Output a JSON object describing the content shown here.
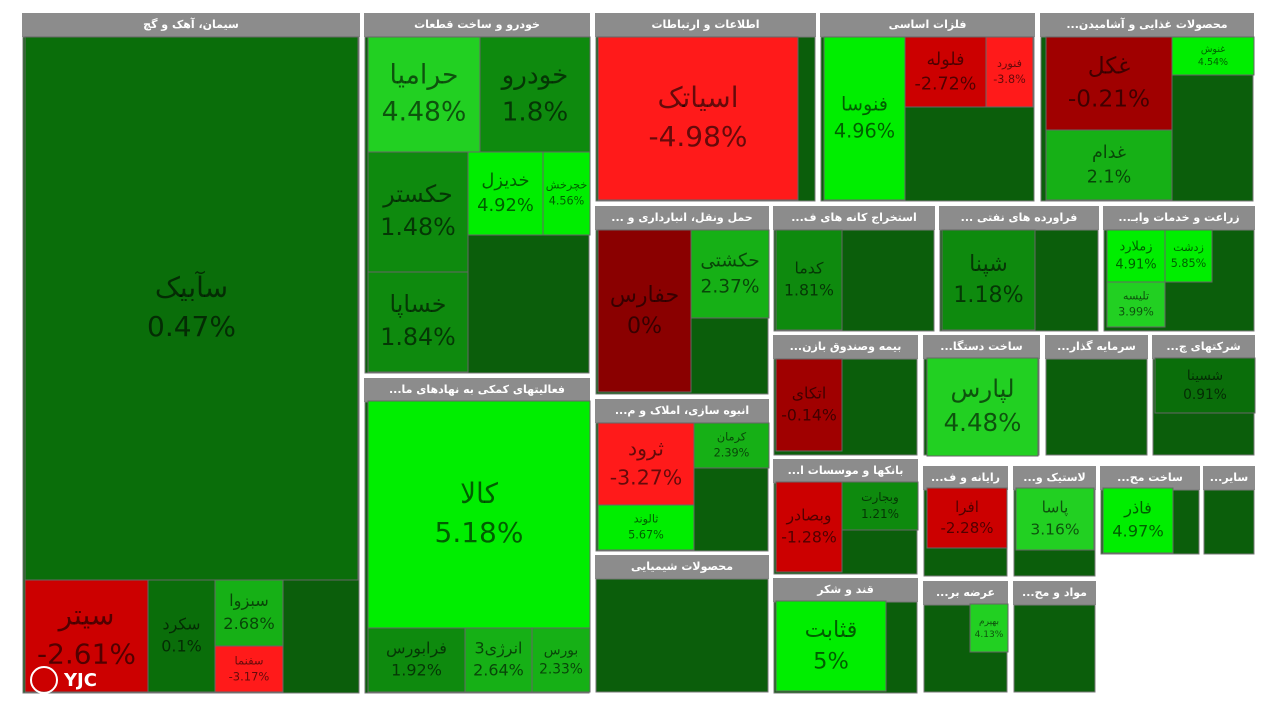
{
  "watermark": "YJC",
  "sectors": [
    {
      "title": "سیمان، آهک و گچ",
      "tiles": [
        {
          "name": "سآبیک",
          "change": "0.47%"
        },
        {
          "name": "سیتر",
          "change": "-2.61%"
        },
        {
          "name": "سکرد",
          "change": "0.1%"
        },
        {
          "name": "سبزوا",
          "change": "2.68%"
        },
        {
          "name": "سفنما",
          "change": "-3.17%"
        }
      ]
    },
    {
      "title": "خودرو و ساخت قطعات",
      "tiles": [
        {
          "name": "حرامیا",
          "change": "4.48%"
        },
        {
          "name": "خودرو",
          "change": "1.8%"
        },
        {
          "name": "حکستر",
          "change": "1.48%"
        },
        {
          "name": "خساپا",
          "change": "1.84%"
        },
        {
          "name": "خدیزل",
          "change": "4.92%"
        },
        {
          "name": "خچرخش",
          "change": "4.56%"
        }
      ]
    },
    {
      "title": "...فعالیتهای کمکی به نهادهای ما",
      "tiles": [
        {
          "name": "کالا",
          "change": "5.18%"
        },
        {
          "name": "فرابورس",
          "change": "1.92%"
        },
        {
          "name": "انرژی3",
          "change": "2.64%"
        },
        {
          "name": "بورس",
          "change": "2.33%"
        }
      ]
    },
    {
      "title": "اطلاعات و ارتباطات",
      "tiles": [
        {
          "name": "اسیاتک",
          "change": "-4.98%"
        }
      ]
    },
    {
      "title": "فلزات اساسی",
      "tiles": [
        {
          "name": "فنوسا",
          "change": "4.96%"
        },
        {
          "name": "فلوله",
          "change": "-2.72%"
        },
        {
          "name": "فنورد",
          "change": "-3.8%"
        }
      ]
    },
    {
      "title": "...محصولات غذایی و آشامیدن",
      "tiles": [
        {
          "name": "غکل",
          "change": "-0.21%"
        },
        {
          "name": "غدام",
          "change": "2.1%"
        },
        {
          "name": "غنوش",
          "change": "4.54%"
        }
      ]
    },
    {
      "title": "... حمل ونقل، انبارداری و",
      "tiles": [
        {
          "name": "حفارس",
          "change": "0%"
        },
        {
          "name": "حکشتی",
          "change": "2.37%"
        }
      ]
    },
    {
      "title": "...استخراج کانه های ف",
      "tiles": [
        {
          "name": "کدما",
          "change": "1.81%"
        }
      ]
    },
    {
      "title": "... فراورده های نفتی",
      "tiles": [
        {
          "name": "شپنا",
          "change": "1.18%"
        }
      ]
    },
    {
      "title": "...زراعت و خدمات وابـ",
      "tiles": [
        {
          "name": "زملارد",
          "change": "4.91%"
        },
        {
          "name": "زدشت",
          "change": "5.85%"
        },
        {
          "name": "تلیسه",
          "change": "3.99%"
        }
      ]
    },
    {
      "title": "...بیمه وصندوق بازن",
      "tiles": [
        {
          "name": "اتکای",
          "change": "-0.14%"
        }
      ]
    },
    {
      "title": "...ساخت دستگا",
      "tiles": [
        {
          "name": "لپارس",
          "change": "4.48%"
        }
      ]
    },
    {
      "title": "...سرمایه گذار",
      "tiles": []
    },
    {
      "title": "...شرکتهای چ",
      "tiles": [
        {
          "name": "شسینا",
          "change": "0.91%"
        }
      ]
    },
    {
      "title": "...انبوه سازی، املاک و م",
      "tiles": [
        {
          "name": "ثرود",
          "change": "-3.27%"
        },
        {
          "name": "ثالوند",
          "change": "5.67%"
        },
        {
          "name": "کرمان",
          "change": "2.39%"
        }
      ]
    },
    {
      "title": "...بانکها و موسسات ا",
      "tiles": [
        {
          "name": "وبصادر",
          "change": "-1.28%"
        },
        {
          "name": "وبجارت",
          "change": "1.21%"
        }
      ]
    },
    {
      "title": "...رایانه و ف",
      "tiles": [
        {
          "name": "افرا",
          "change": "-2.28%"
        }
      ]
    },
    {
      "title": "...لاستیک و",
      "tiles": [
        {
          "name": "پاسا",
          "change": "3.16%"
        }
      ]
    },
    {
      "title": "...ساخت مح",
      "tiles": [
        {
          "name": "فاذر",
          "change": "4.97%"
        }
      ]
    },
    {
      "title": "...سایر",
      "tiles": []
    },
    {
      "title": "محصولات شیمیایی",
      "tiles": []
    },
    {
      "title": "قند و شکر",
      "tiles": [
        {
          "name": "قثابت",
          "change": "5%"
        }
      ]
    },
    {
      "title": "...عرضه بر",
      "tiles": [
        {
          "name": "بهپرم",
          "change": "4.13%"
        }
      ]
    },
    {
      "title": "...مواد و مح",
      "tiles": []
    }
  ]
}
